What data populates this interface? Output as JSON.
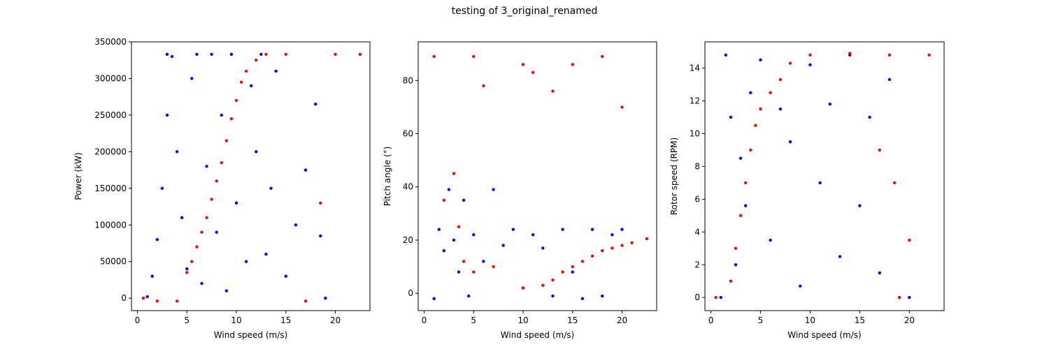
{
  "figure": {
    "title": "testing of 3_original_renamed"
  },
  "colors": {
    "normal": "#0000ff",
    "anomaly": "#ff0000"
  },
  "chart_data": [
    {
      "type": "scatter",
      "xlabel": "Wind speed (m/s)",
      "ylabel": "Power (kW)",
      "xlim": [
        -0.6,
        23.5
      ],
      "ylim": [
        -17000,
        350000
      ],
      "xticks": [
        0,
        5,
        10,
        15,
        20
      ],
      "yticks": [
        0,
        50000,
        100000,
        150000,
        200000,
        250000,
        300000,
        350000
      ],
      "series": [
        {
          "color": "#0000ff",
          "points": [
            [
              1,
              2000
            ],
            [
              1.5,
              30000
            ],
            [
              2,
              80000
            ],
            [
              2.5,
              150000
            ],
            [
              3,
              250000
            ],
            [
              3,
              333000
            ],
            [
              3.5,
              330000
            ],
            [
              4,
              200000
            ],
            [
              4.5,
              110000
            ],
            [
              5,
              40000
            ],
            [
              5.5,
              300000
            ],
            [
              6,
              333000
            ],
            [
              6.5,
              20000
            ],
            [
              7,
              180000
            ],
            [
              7.5,
              333000
            ],
            [
              8,
              90000
            ],
            [
              8.5,
              250000
            ],
            [
              9,
              10000
            ],
            [
              9.5,
              333000
            ],
            [
              10,
              130000
            ],
            [
              11,
              50000
            ],
            [
              11.5,
              290000
            ],
            [
              12,
              200000
            ],
            [
              12.5,
              333000
            ],
            [
              13,
              60000
            ],
            [
              13.5,
              150000
            ],
            [
              14,
              310000
            ],
            [
              15,
              30000
            ],
            [
              16,
              100000
            ],
            [
              17,
              175000
            ],
            [
              18,
              265000
            ],
            [
              18.5,
              85000
            ],
            [
              19,
              0
            ]
          ]
        },
        {
          "color": "#ff0000",
          "points": [
            [
              0.6,
              0
            ],
            [
              2,
              -4000
            ],
            [
              4,
              -4000
            ],
            [
              5,
              35000
            ],
            [
              5.5,
              50000
            ],
            [
              6,
              70000
            ],
            [
              6.5,
              90000
            ],
            [
              7,
              110000
            ],
            [
              7.5,
              135000
            ],
            [
              8,
              160000
            ],
            [
              8.5,
              185000
            ],
            [
              9,
              215000
            ],
            [
              9.5,
              245000
            ],
            [
              10,
              270000
            ],
            [
              10.5,
              295000
            ],
            [
              11,
              310000
            ],
            [
              12,
              325000
            ],
            [
              13,
              333000
            ],
            [
              15,
              333000
            ],
            [
              17,
              -4000
            ],
            [
              18.5,
              130000
            ],
            [
              20,
              333000
            ],
            [
              22.5,
              333000
            ]
          ]
        }
      ]
    },
    {
      "type": "scatter",
      "xlabel": "Wind speed (m/s)",
      "ylabel": "Pitch angle (°)",
      "xlim": [
        -0.6,
        23.5
      ],
      "ylim": [
        -6.5,
        94.5
      ],
      "xticks": [
        0,
        5,
        10,
        15,
        20
      ],
      "yticks": [
        0,
        20,
        40,
        60,
        80
      ],
      "series": [
        {
          "color": "#0000ff",
          "points": [
            [
              1,
              -2
            ],
            [
              1.5,
              24
            ],
            [
              2,
              16
            ],
            [
              2.5,
              39
            ],
            [
              3,
              20
            ],
            [
              3.5,
              8
            ],
            [
              4,
              35
            ],
            [
              4.5,
              -1
            ],
            [
              5,
              22
            ],
            [
              6,
              12
            ],
            [
              7,
              39
            ],
            [
              8,
              18
            ],
            [
              9,
              24
            ],
            [
              10,
              2
            ],
            [
              11,
              22
            ],
            [
              12,
              17
            ],
            [
              13,
              -1
            ],
            [
              14,
              24
            ],
            [
              15,
              8
            ],
            [
              16,
              -2
            ],
            [
              17,
              24
            ],
            [
              18,
              -1
            ],
            [
              19,
              22
            ],
            [
              20,
              24
            ]
          ]
        },
        {
          "color": "#ff0000",
          "points": [
            [
              1,
              89
            ],
            [
              5,
              89
            ],
            [
              10,
              86
            ],
            [
              15,
              86
            ],
            [
              18,
              89
            ],
            [
              2,
              35
            ],
            [
              3,
              45
            ],
            [
              3.5,
              25
            ],
            [
              4,
              12
            ],
            [
              5,
              8
            ],
            [
              7,
              10
            ],
            [
              10,
              2
            ],
            [
              12,
              3
            ],
            [
              13,
              5
            ],
            [
              14,
              8
            ],
            [
              15,
              10
            ],
            [
              16,
              12
            ],
            [
              17,
              14
            ],
            [
              18,
              16
            ],
            [
              19,
              17
            ],
            [
              20,
              18
            ],
            [
              21,
              19
            ],
            [
              22.5,
              20.5
            ],
            [
              11,
              83
            ],
            [
              6,
              78
            ],
            [
              20,
              70
            ],
            [
              13,
              76
            ]
          ]
        }
      ]
    },
    {
      "type": "scatter",
      "xlabel": "Wind speed (m/s)",
      "ylabel": "Rotor speed (RPM)",
      "xlim": [
        -0.6,
        23.5
      ],
      "ylim": [
        -0.8,
        15.6
      ],
      "xticks": [
        0,
        5,
        10,
        15,
        20
      ],
      "yticks": [
        0,
        2,
        4,
        6,
        8,
        10,
        12,
        14
      ],
      "series": [
        {
          "color": "#0000ff",
          "points": [
            [
              1,
              0
            ],
            [
              1.5,
              14.8
            ],
            [
              2,
              11
            ],
            [
              2.5,
              2
            ],
            [
              3,
              8.5
            ],
            [
              3.5,
              5.6
            ],
            [
              4,
              12.5
            ],
            [
              5,
              14.5
            ],
            [
              6,
              3.5
            ],
            [
              7,
              11.5
            ],
            [
              8,
              9.5
            ],
            [
              9,
              0.7
            ],
            [
              10,
              14.2
            ],
            [
              11,
              7
            ],
            [
              12,
              11.8
            ],
            [
              13,
              2.5
            ],
            [
              14,
              14.8
            ],
            [
              15,
              5.6
            ],
            [
              16,
              11
            ],
            [
              17,
              1.5
            ],
            [
              18,
              13.3
            ],
            [
              19,
              0
            ],
            [
              20,
              0
            ]
          ]
        },
        {
          "color": "#ff0000",
          "points": [
            [
              0.5,
              0
            ],
            [
              2,
              1
            ],
            [
              2.5,
              3
            ],
            [
              3,
              5
            ],
            [
              3.5,
              7
            ],
            [
              4,
              9
            ],
            [
              4.5,
              10.5
            ],
            [
              5,
              11.5
            ],
            [
              6,
              12.5
            ],
            [
              7,
              13.3
            ],
            [
              8,
              14.3
            ],
            [
              10,
              14.8
            ],
            [
              14,
              14.9
            ],
            [
              18,
              14.8
            ],
            [
              22,
              14.8
            ],
            [
              20,
              3.5
            ],
            [
              18.5,
              7
            ],
            [
              17,
              9
            ],
            [
              19,
              0
            ]
          ]
        }
      ]
    }
  ]
}
